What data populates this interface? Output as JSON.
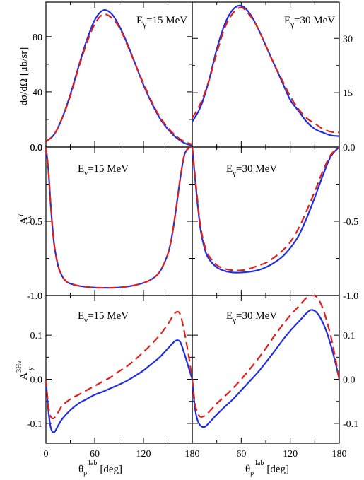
{
  "colors": {
    "series1": "#1f2fe0",
    "series2": "#e0201a",
    "axis": "#000000"
  },
  "chart_data": {
    "type": "line",
    "x_ticks": [
      "0",
      "60",
      "120",
      "180"
    ],
    "xlim": [
      0,
      180
    ],
    "xlabel": {
      "theta": "θ",
      "sub": "p",
      "sup": "lab",
      "unit": "[deg]"
    },
    "panels": [
      {
        "id": "cs-15",
        "row": 0,
        "col": 0,
        "label": "E",
        "label_sub": "γ",
        "label_rest": "=15 MeV",
        "ylim": [
          0,
          105
        ],
        "yticks": [
          0,
          40,
          80
        ],
        "ytick_labels": [
          "0.0",
          "40",
          "80"
        ],
        "tick_side": "left",
        "series": [
          {
            "name": "",
            "style": "solid",
            "x": [
              0,
              10,
              20,
              30,
              40,
              50,
              60,
              70,
              80,
              90,
              100,
              110,
              120,
              130,
              140,
              150,
              160,
              170,
              180
            ],
            "y": [
              4,
              9,
              21,
              38,
              58,
              77,
              92,
              99,
              97,
              88,
              75,
              60,
              45,
              32,
              21,
              13,
              7,
              3,
              1
            ]
          },
          {
            "name": "",
            "style": "dashed",
            "x": [
              0,
              10,
              20,
              30,
              40,
              50,
              60,
              70,
              80,
              90,
              100,
              110,
              120,
              130,
              140,
              150,
              160,
              170,
              180
            ],
            "y": [
              4,
              9,
              21,
              37,
              57,
              75,
              89,
              96,
              94,
              87,
              74,
              60,
              46,
              33,
              22,
              14,
              8,
              4,
              2
            ]
          }
        ]
      },
      {
        "id": "cs-30",
        "row": 0,
        "col": 1,
        "label": "E",
        "label_sub": "γ",
        "label_rest": "=30 MeV",
        "ylim": [
          0,
          40
        ],
        "yticks": [
          15,
          30
        ],
        "ytick_labels": [
          "15",
          "30"
        ],
        "tick_side": "right",
        "series": [
          {
            "name": "",
            "style": "solid",
            "x": [
              0,
              10,
              20,
              30,
              40,
              50,
              60,
              70,
              80,
              90,
              100,
              110,
              120,
              130,
              140,
              150,
              160,
              170,
              180
            ],
            "y": [
              7,
              11,
              18,
              27,
              34,
              38,
              39,
              37,
              33,
              28,
              23,
              18,
              13,
              10,
              7,
              5,
              4,
              3.2,
              3
            ]
          },
          {
            "name": "",
            "style": "dashed",
            "x": [
              0,
              10,
              20,
              30,
              40,
              50,
              60,
              70,
              80,
              90,
              100,
              110,
              120,
              130,
              140,
              150,
              160,
              170,
              180
            ],
            "y": [
              8,
              12,
              18,
              26,
              33,
              37,
              38.5,
              36.5,
              33,
              28,
              23,
              18.5,
              14,
              10.5,
              8,
              6.5,
              5,
              4.2,
              4
            ]
          }
        ]
      },
      {
        "id": "ax-15",
        "row": 1,
        "col": 0,
        "label": "E",
        "label_sub": "γ",
        "label_rest": "=15 MeV",
        "ylim": [
          -1,
          0
        ],
        "yticks": [
          -1,
          -0.5,
          0
        ],
        "ytick_labels": [
          "-1.0",
          "-0.5",
          "0.0"
        ],
        "tick_side": "left",
        "series": [
          {
            "name": "",
            "style": "solid",
            "x": [
              0,
              3,
              6,
              10,
              15,
              20,
              25,
              30,
              40,
              50,
              60,
              70,
              80,
              90,
              100,
              110,
              120,
              130,
              140,
              150,
              155,
              160,
              165,
              170,
              175,
              180
            ],
            "y": [
              0,
              -0.15,
              -0.4,
              -0.65,
              -0.8,
              -0.87,
              -0.905,
              -0.92,
              -0.935,
              -0.942,
              -0.947,
              -0.948,
              -0.948,
              -0.946,
              -0.94,
              -0.93,
              -0.915,
              -0.89,
              -0.84,
              -0.72,
              -0.6,
              -0.42,
              -0.22,
              -0.06,
              -0.01,
              0
            ]
          },
          {
            "name": "",
            "style": "dashed",
            "x": [
              0,
              3,
              6,
              10,
              15,
              20,
              25,
              30,
              40,
              50,
              60,
              70,
              80,
              90,
              100,
              110,
              120,
              130,
              140,
              150,
              155,
              160,
              165,
              170,
              175,
              180
            ],
            "y": [
              0,
              -0.15,
              -0.4,
              -0.65,
              -0.8,
              -0.87,
              -0.905,
              -0.92,
              -0.935,
              -0.942,
              -0.947,
              -0.948,
              -0.948,
              -0.946,
              -0.94,
              -0.93,
              -0.915,
              -0.89,
              -0.84,
              -0.72,
              -0.6,
              -0.42,
              -0.22,
              -0.06,
              -0.01,
              0
            ]
          }
        ]
      },
      {
        "id": "ax-30",
        "row": 1,
        "col": 1,
        "label": "E",
        "label_sub": "γ",
        "label_rest": "=30 MeV",
        "ylim": [
          -1,
          0
        ],
        "yticks": [
          -1,
          -0.5,
          0
        ],
        "ytick_labels": [
          "-1.0",
          "-0.5",
          "0.0"
        ],
        "tick_side": "right",
        "series": [
          {
            "name": "",
            "style": "solid",
            "x": [
              0,
              5,
              10,
              15,
              20,
              30,
              40,
              50,
              60,
              70,
              80,
              90,
              100,
              110,
              120,
              130,
              140,
              150,
              160,
              170,
              180
            ],
            "y": [
              0,
              -0.3,
              -0.55,
              -0.68,
              -0.75,
              -0.81,
              -0.835,
              -0.845,
              -0.845,
              -0.84,
              -0.83,
              -0.81,
              -0.78,
              -0.74,
              -0.68,
              -0.6,
              -0.48,
              -0.34,
              -0.19,
              -0.06,
              0
            ]
          },
          {
            "name": "",
            "style": "dashed",
            "x": [
              0,
              5,
              10,
              15,
              20,
              30,
              40,
              50,
              60,
              70,
              80,
              90,
              100,
              110,
              120,
              130,
              140,
              150,
              160,
              170,
              180
            ],
            "y": [
              0,
              -0.28,
              -0.53,
              -0.66,
              -0.73,
              -0.795,
              -0.82,
              -0.83,
              -0.83,
              -0.82,
              -0.8,
              -0.78,
              -0.745,
              -0.7,
              -0.64,
              -0.55,
              -0.43,
              -0.3,
              -0.16,
              -0.05,
              0
            ]
          }
        ]
      },
      {
        "id": "ay-15",
        "row": 2,
        "col": 0,
        "label": "E",
        "label_sub": "γ",
        "label_rest": "=15 MeV",
        "ylim": [
          -0.145,
          0.19
        ],
        "yticks": [
          -0.1,
          0,
          0.1
        ],
        "ytick_labels": [
          "-0.1",
          "0.0",
          "0.1"
        ],
        "tick_side": "left",
        "series": [
          {
            "name": "",
            "style": "solid",
            "x": [
              0,
              3,
              6,
              10,
              15,
              20,
              30,
              40,
              50,
              60,
              70,
              80,
              90,
              100,
              110,
              120,
              130,
              140,
              150,
              155,
              160,
              165,
              170,
              175,
              180
            ],
            "y": [
              0,
              -0.07,
              -0.11,
              -0.12,
              -0.105,
              -0.09,
              -0.07,
              -0.055,
              -0.045,
              -0.035,
              -0.028,
              -0.02,
              -0.012,
              -0.003,
              0.008,
              0.02,
              0.035,
              0.05,
              0.07,
              0.08,
              0.088,
              0.085,
              0.06,
              0.03,
              0.0
            ]
          },
          {
            "name": "",
            "style": "dashed",
            "x": [
              0,
              3,
              6,
              10,
              15,
              20,
              30,
              40,
              50,
              60,
              70,
              80,
              90,
              100,
              110,
              120,
              130,
              140,
              150,
              155,
              160,
              165,
              170,
              175,
              180
            ],
            "y": [
              0,
              -0.06,
              -0.085,
              -0.088,
              -0.075,
              -0.06,
              -0.045,
              -0.035,
              -0.025,
              -0.015,
              -0.005,
              0.005,
              0.018,
              0.03,
              0.045,
              0.062,
              0.08,
              0.1,
              0.125,
              0.14,
              0.152,
              0.148,
              0.11,
              0.06,
              0.0
            ]
          }
        ]
      },
      {
        "id": "ay-30",
        "row": 2,
        "col": 1,
        "label": "E",
        "label_sub": "γ",
        "label_rest": "=30 MeV",
        "ylim": [
          -0.145,
          0.19
        ],
        "yticks": [
          -0.1,
          0,
          0.1
        ],
        "ytick_labels": [
          "-0.1",
          "0.0",
          "0.1"
        ],
        "tick_side": "right",
        "series": [
          {
            "name": "",
            "style": "solid",
            "x": [
              0,
              3,
              6,
              10,
              15,
              20,
              25,
              30,
              40,
              50,
              60,
              70,
              80,
              90,
              100,
              110,
              120,
              130,
              140,
              145,
              150,
              155,
              160,
              165,
              170,
              175,
              180
            ],
            "y": [
              0,
              -0.06,
              -0.09,
              -0.105,
              -0.108,
              -0.1,
              -0.09,
              -0.08,
              -0.062,
              -0.045,
              -0.025,
              -0.005,
              0.015,
              0.038,
              0.062,
              0.087,
              0.11,
              0.13,
              0.15,
              0.157,
              0.155,
              0.145,
              0.128,
              0.105,
              0.075,
              0.04,
              0.0
            ]
          },
          {
            "name": "",
            "style": "dashed",
            "x": [
              0,
              3,
              6,
              10,
              15,
              20,
              25,
              30,
              40,
              50,
              60,
              70,
              80,
              90,
              100,
              110,
              120,
              130,
              140,
              145,
              150,
              155,
              160,
              165,
              170,
              175,
              180
            ],
            "y": [
              0,
              -0.05,
              -0.075,
              -0.085,
              -0.083,
              -0.075,
              -0.065,
              -0.055,
              -0.038,
              -0.02,
              0.0,
              0.022,
              0.045,
              0.07,
              0.097,
              0.122,
              0.145,
              0.165,
              0.185,
              0.19,
              0.19,
              0.18,
              0.16,
              0.13,
              0.095,
              0.05,
              0.0
            ]
          }
        ]
      }
    ],
    "ylabels": [
      {
        "row": 0,
        "text": "dσ/dΩ [μb/sr]"
      },
      {
        "row": 1,
        "main": "A",
        "sup": "γ",
        "sub": "x"
      },
      {
        "row": 2,
        "main": "A",
        "sup": "3He",
        "sub": "y"
      }
    ]
  }
}
